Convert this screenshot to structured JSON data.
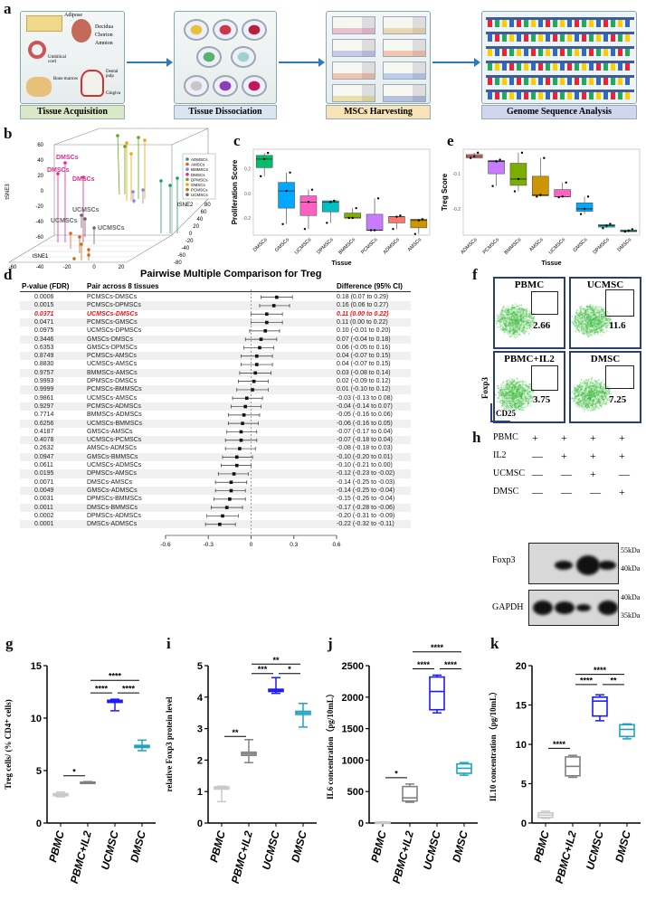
{
  "panel_labels": {
    "a": "a",
    "b": "b",
    "c": "c",
    "d": "d",
    "e": "e",
    "f": "f",
    "g": "g",
    "h": "h",
    "i": "i",
    "j": "j",
    "k": "k"
  },
  "panel_a": {
    "steps": [
      "Tissue Acquisition",
      "Tissue Dissociation",
      "MSCs Harvesting",
      "Genome Sequence Analysis"
    ],
    "tissues": [
      "Adipose",
      "Decidua",
      "Chorion",
      "Amnion",
      "Umbilical cord",
      "Bone marrow",
      "Dental pulp",
      "Gingiva"
    ],
    "accent": "#2b7bb9"
  },
  "chart_data": [
    {
      "id": "b",
      "type": "scatter",
      "title": "",
      "xlabel": "tSNE1",
      "ylabel": "tSNE2",
      "zlabel": "tSNE3",
      "x_ticks": [
        "-60",
        "-40",
        "-20",
        "0",
        "20"
      ],
      "y_ticks": [
        "-80",
        "-60",
        "-40",
        "-20",
        "0",
        "20",
        "40",
        "60",
        "80"
      ],
      "z_ticks": [
        "-60",
        "-40",
        "-20",
        "0",
        "20",
        "40",
        "60"
      ],
      "legend": [
        {
          "name": "ADMSCs",
          "color": "#1b9e77"
        },
        {
          "name": "AMSCs",
          "color": "#e7601c"
        },
        {
          "name": "BMMSCs",
          "color": "#8a86d0"
        },
        {
          "name": "DMSCs",
          "color": "#e7298a"
        },
        {
          "name": "DPMSCs",
          "color": "#66a61e"
        },
        {
          "name": "GMSCs",
          "color": "#e6ab02"
        },
        {
          "name": "PCMSCs",
          "color": "#b5771b"
        },
        {
          "name": "UCMSCs",
          "color": "#666666"
        }
      ],
      "legend_position": "top-right",
      "annotations": [
        "DMSCs",
        "DMSCs",
        "DMSCs",
        "UCMSCs",
        "UCMSCs",
        "UCMSCs"
      ]
    },
    {
      "id": "c",
      "type": "box",
      "ylabel": "Proliferation Score",
      "xlabel": "Tissue",
      "ylim": [
        -0.34,
        0.36
      ],
      "y_ticks": [
        0.2,
        0.0,
        -0.2
      ],
      "y_tick_labels": [
        "0.2",
        "0.0",
        "-0.2"
      ],
      "categories": [
        "DMSCs",
        "GMSCs",
        "UCMSCs",
        "DPMSCs",
        "BMMSCs",
        "PCMSCs",
        "ADMSCs",
        "AMSCs"
      ],
      "colors": [
        "#00be67",
        "#00a9ff",
        "#ff61c3",
        "#00bfc4",
        "#7cae00",
        "#c77cff",
        "#f8766d",
        "#cd9600"
      ],
      "boxes": [
        [
          0.14,
          0.21,
          0.28,
          0.31,
          0.33
        ],
        [
          -0.25,
          -0.12,
          0.02,
          0.09,
          0.17
        ],
        [
          -0.29,
          -0.18,
          -0.07,
          -0.02,
          0.03
        ],
        [
          -0.24,
          -0.15,
          -0.07,
          -0.06,
          -0.06
        ],
        [
          -0.2,
          -0.2,
          -0.2,
          -0.16,
          -0.12
        ],
        [
          -0.3,
          -0.3,
          -0.3,
          -0.17,
          -0.04
        ],
        [
          -0.29,
          -0.24,
          -0.19,
          -0.19,
          -0.18
        ],
        [
          -0.33,
          -0.28,
          -0.22,
          -0.21,
          -0.21
        ]
      ]
    },
    {
      "id": "e",
      "type": "box",
      "ylabel": "Treg Score",
      "xlabel": "Tissue",
      "ylim": [
        -0.275,
        -0.03
      ],
      "y_ticks": [
        -0.1,
        -0.2
      ],
      "y_tick_labels": [
        "-0.1",
        "-0.2"
      ],
      "categories": [
        "ADMSCs",
        "PCMSCs",
        "BMMSCs",
        "AMSCs",
        "UCMSCs",
        "GMSCs",
        "DPMSCs",
        "DMSCs"
      ],
      "colors": [
        "#f8766d",
        "#c77cff",
        "#7cae00",
        "#cd9600",
        "#ff61c3",
        "#00a9ff",
        "#00bfc4",
        "#00be67"
      ],
      "boxes": [
        [
          -0.055,
          -0.055,
          -0.05,
          -0.045,
          -0.04
        ],
        [
          -0.135,
          -0.1,
          -0.065,
          -0.062,
          -0.06
        ],
        [
          -0.15,
          -0.133,
          -0.115,
          -0.07,
          -0.04
        ],
        [
          -0.165,
          -0.163,
          -0.16,
          -0.107,
          -0.055
        ],
        [
          -0.167,
          -0.165,
          -0.165,
          -0.145,
          -0.125
        ],
        [
          -0.215,
          -0.207,
          -0.2,
          -0.183,
          -0.165
        ],
        [
          -0.255,
          -0.252,
          -0.248,
          -0.245,
          -0.243
        ],
        [
          -0.265,
          -0.265,
          -0.263,
          -0.26,
          -0.258
        ]
      ]
    },
    {
      "id": "d",
      "type": "forest",
      "title": "Pairwise Multiple Comparison for Treg",
      "headers": [
        "P-value (FDR)",
        "Pair across 8 tissues",
        "Difference (95% CI)"
      ],
      "xlim": [
        -0.6,
        0.6
      ],
      "x_ticks": [
        "-0.6",
        "-0.3",
        "0",
        "0.3",
        "0.6"
      ],
      "highlight_color": "#e8141b",
      "rows": [
        {
          "p": "0.0006",
          "pair": "PCMSCs-DMSCs",
          "est": 0.18,
          "lo": 0.07,
          "hi": 0.29,
          "text": "0.18 (0.07 to 0.29)"
        },
        {
          "p": "0.0015",
          "pair": "PCMSCs-DPMSCs",
          "est": 0.16,
          "lo": 0.06,
          "hi": 0.27,
          "text": "0.16 (0.06 to 0.27)"
        },
        {
          "p": "0.0371",
          "pair": "UCMSCs-DMSCs",
          "est": 0.11,
          "lo": 0.0,
          "hi": 0.22,
          "text": "0.11 (0.00 to 0.22)",
          "highlight": true
        },
        {
          "p": "0.0471",
          "pair": "PCMSCs-GMSCs",
          "est": 0.11,
          "lo": 0.0,
          "hi": 0.22,
          "text": "0.11 (0.00 to 0.22)"
        },
        {
          "p": "0.0975",
          "pair": "UCMSCs-DPMSCs",
          "est": 0.1,
          "lo": -0.01,
          "hi": 0.2,
          "text": "0.10 (-0.01 to 0.20)"
        },
        {
          "p": "0.3446",
          "pair": "GMSCs-DMSCs",
          "est": 0.07,
          "lo": -0.04,
          "hi": 0.18,
          "text": "0.07 (-0.04 to 0.18)"
        },
        {
          "p": "0.6353",
          "pair": "GMSCs-DPMSCs",
          "est": 0.06,
          "lo": -0.05,
          "hi": 0.16,
          "text": "0.06 (-0.05 to 0.16)"
        },
        {
          "p": "0.8749",
          "pair": "PCMSCs-AMSCs",
          "est": 0.04,
          "lo": -0.07,
          "hi": 0.15,
          "text": "0.04 (-0.07 to 0.15)"
        },
        {
          "p": "0.8830",
          "pair": "UCMSCs-AMSCs",
          "est": 0.04,
          "lo": -0.07,
          "hi": 0.15,
          "text": "0.04 (-0.07 to 0.15)"
        },
        {
          "p": "0.9757",
          "pair": "BMMSCs-AMSCs",
          "est": 0.03,
          "lo": -0.08,
          "hi": 0.14,
          "text": "0.03 (-0.08 to 0.14)"
        },
        {
          "p": "0.9993",
          "pair": "DPMSCs-DMSCs",
          "est": 0.02,
          "lo": -0.09,
          "hi": 0.12,
          "text": "0.02 (-0.09 to 0.12)"
        },
        {
          "p": "0.9999",
          "pair": "PCMSCs-BMMSCs",
          "est": 0.01,
          "lo": -0.1,
          "hi": 0.12,
          "text": "0.01 (-0.10 to 0.12)"
        },
        {
          "p": "0.9861",
          "pair": "UCMSCs-AMSCs",
          "est": -0.03,
          "lo": -0.13,
          "hi": 0.08,
          "text": "-0.03 (-0.13 to 0.08)"
        },
        {
          "p": "0.9297",
          "pair": "PCMSCs-ADMSCs",
          "est": -0.04,
          "lo": -0.14,
          "hi": 0.07,
          "text": "-0.04 (-0.14 to 0.07)"
        },
        {
          "p": "0.7714",
          "pair": "BMMSCs-ADMSCs",
          "est": -0.05,
          "lo": -0.16,
          "hi": 0.06,
          "text": "-0.05 (-0.16 to 0.06)"
        },
        {
          "p": "0.6256",
          "pair": "UCMSCs-BMMSCs",
          "est": -0.06,
          "lo": -0.16,
          "hi": 0.05,
          "text": "-0.06 (-0.16 to 0.05)"
        },
        {
          "p": "0.4187",
          "pair": "GMSCs-AMSCs",
          "est": -0.07,
          "lo": -0.17,
          "hi": 0.04,
          "text": "-0.07 (-0.17 to 0.04)"
        },
        {
          "p": "0.4078",
          "pair": "UCMSCs-PCMSCs",
          "est": -0.07,
          "lo": -0.18,
          "hi": 0.04,
          "text": "-0.07 (-0.18 to 0.04)"
        },
        {
          "p": "0.2632",
          "pair": "AMSCs-ADMSCs",
          "est": -0.08,
          "lo": -0.18,
          "hi": 0.03,
          "text": "-0.08 (-0.18 to 0.03)"
        },
        {
          "p": "0.0947",
          "pair": "GMSCs-BMMSCs",
          "est": -0.1,
          "lo": -0.2,
          "hi": 0.01,
          "text": "-0.10 (-0.20 to 0.01)"
        },
        {
          "p": "0.0611",
          "pair": "UCMSCs-ADMSCs",
          "est": -0.1,
          "lo": -0.21,
          "hi": 0.0,
          "text": "-0.10 (-0.21 to 0.00)"
        },
        {
          "p": "0.0195",
          "pair": "DPMSCs-AMSCs",
          "est": -0.12,
          "lo": -0.23,
          "hi": -0.02,
          "text": "-0.12 (-0.23 to -0.02)"
        },
        {
          "p": "0.0071",
          "pair": "DMSCs-AMSCs",
          "est": -0.14,
          "lo": -0.25,
          "hi": -0.03,
          "text": "-0.14 (-0.25 to -0.03)"
        },
        {
          "p": "0.0049",
          "pair": "GMSCs-ADMSCs",
          "est": -0.14,
          "lo": -0.25,
          "hi": -0.04,
          "text": "-0.14 (-0.25 to -0.04)"
        },
        {
          "p": "0.0031",
          "pair": "DPMSCs-BMMSCs",
          "est": -0.15,
          "lo": -0.26,
          "hi": -0.04,
          "text": "-0.15 (-0.26 to -0.04)"
        },
        {
          "p": "0.0011",
          "pair": "DMSCs-BMMSCs",
          "est": -0.17,
          "lo": -0.28,
          "hi": -0.06,
          "text": "-0.17 (-0.28 to -0.06)"
        },
        {
          "p": "0.0002",
          "pair": "DPMSCs-ADMSCs",
          "est": -0.2,
          "lo": -0.31,
          "hi": -0.09,
          "text": "-0.20 (-0.31 to -0.09)"
        },
        {
          "p": "0.0001",
          "pair": "DMSCs-ADMSCs",
          "est": -0.22,
          "lo": -0.32,
          "hi": -0.11,
          "text": "-0.22 (-0.32 to -0.11)"
        }
      ]
    },
    {
      "id": "g",
      "type": "box",
      "ylabel": "Treg cells/ (% CD4⁺ cells)",
      "ylim": [
        0,
        15
      ],
      "y_ticks": [
        0,
        5,
        10,
        15
      ],
      "y_tick_labels": [
        "0",
        "5",
        "10",
        "15"
      ],
      "categories": [
        "PBMC",
        "PBMC+IL2",
        "UCMSC",
        "DMSC"
      ],
      "colors": [
        "#c8c8c8",
        "#808080",
        "#1a1aff",
        "#1fa3c0"
      ],
      "boxes": [
        [
          2.5,
          2.6,
          2.7,
          2.8,
          2.95
        ],
        [
          3.8,
          3.82,
          3.85,
          3.9,
          3.95
        ],
        [
          10.7,
          11.5,
          11.6,
          11.7,
          11.8
        ],
        [
          6.9,
          7.2,
          7.3,
          7.4,
          7.9
        ]
      ],
      "brackets": [
        {
          "from": 0,
          "to": 1,
          "level": 4.5,
          "label": "*"
        },
        {
          "from": 1,
          "to": 2,
          "level": 12.4,
          "label": "****"
        },
        {
          "from": 2,
          "to": 3,
          "level": 12.4,
          "label": "****"
        },
        {
          "from": 1,
          "to": 3,
          "level": 13.6,
          "label": "****"
        }
      ]
    },
    {
      "id": "i",
      "type": "box",
      "ylabel": "relative Foxp3 protein level",
      "ylim": [
        0,
        5
      ],
      "y_ticks": [
        0,
        1,
        2,
        3,
        4,
        5
      ],
      "y_tick_labels": [
        "0",
        "1",
        "2",
        "3",
        "4",
        "5"
      ],
      "categories": [
        "PBMC",
        "PBMC+IL2",
        "UCMSC",
        "DMSC"
      ],
      "colors": [
        "#c8c8c8",
        "#808080",
        "#1a1aff",
        "#1fa3c0"
      ],
      "boxes": [
        [
          0.68,
          1.08,
          1.12,
          1.15,
          1.17
        ],
        [
          1.92,
          2.15,
          2.2,
          2.25,
          2.65
        ],
        [
          4.12,
          4.18,
          4.22,
          4.25,
          4.62
        ],
        [
          3.05,
          3.45,
          3.5,
          3.55,
          3.8
        ]
      ],
      "brackets": [
        {
          "from": 0,
          "to": 1,
          "level": 2.75,
          "label": "**"
        },
        {
          "from": 1,
          "to": 2,
          "level": 4.75,
          "label": "***"
        },
        {
          "from": 2,
          "to": 3,
          "level": 4.75,
          "label": "*"
        },
        {
          "from": 1,
          "to": 3,
          "level": 5.05,
          "label": "**"
        }
      ]
    },
    {
      "id": "j",
      "type": "box",
      "ylabel": "IL6 concentration（pg/10mL）",
      "ylim": [
        0,
        2500
      ],
      "y_ticks": [
        0,
        500,
        1000,
        1500,
        2000,
        2500
      ],
      "y_tick_labels": [
        "0",
        "500",
        "1000",
        "1500",
        "2000",
        "2500"
      ],
      "categories": [
        "PBMC",
        "PBMC+IL2",
        "UCMSC",
        "DMSC"
      ],
      "colors": [
        "#c8c8c8",
        "#808080",
        "#1a1aff",
        "#1fa3c0"
      ],
      "boxes": [
        [
          0,
          5,
          10,
          15,
          20
        ],
        [
          330,
          350,
          400,
          580,
          620
        ],
        [
          1750,
          1800,
          2090,
          2320,
          2350
        ],
        [
          760,
          790,
          870,
          940,
          960
        ]
      ],
      "brackets": [
        {
          "from": 0,
          "to": 1,
          "level": 720,
          "label": "*"
        },
        {
          "from": 1,
          "to": 2,
          "level": 2450,
          "label": "****"
        },
        {
          "from": 2,
          "to": 3,
          "level": 2450,
          "label": "****"
        },
        {
          "from": 1,
          "to": 3,
          "level": 2720,
          "label": "****"
        }
      ]
    },
    {
      "id": "k",
      "type": "box",
      "ylabel": "IL10 concentration（pg/10mL）",
      "ylim": [
        0,
        20
      ],
      "y_ticks": [
        0,
        5,
        10,
        15,
        20
      ],
      "y_tick_labels": [
        "0",
        "5",
        "10",
        "15",
        "20"
      ],
      "categories": [
        "PBMC",
        "PBMC+IL2",
        "UCMSC",
        "DMSC"
      ],
      "colors": [
        "#c8c8c8",
        "#808080",
        "#1a1aff",
        "#1fa3c0"
      ],
      "boxes": [
        [
          0.6,
          0.7,
          1.0,
          1.3,
          1.5
        ],
        [
          5.8,
          6.0,
          7.2,
          8.4,
          8.6
        ],
        [
          13.0,
          13.6,
          15.5,
          16.0,
          16.3
        ],
        [
          10.7,
          11.0,
          11.9,
          12.5,
          12.6
        ]
      ],
      "brackets": [
        {
          "from": 0,
          "to": 1,
          "level": 9.5,
          "label": "****"
        },
        {
          "from": 1,
          "to": 2,
          "level": 17.6,
          "label": "****"
        },
        {
          "from": 2,
          "to": 3,
          "level": 17.6,
          "label": "**"
        },
        {
          "from": 1,
          "to": 3,
          "level": 18.9,
          "label": "****"
        }
      ]
    }
  ],
  "panel_f": {
    "plots": [
      {
        "title": "PBMC",
        "value": "2.66"
      },
      {
        "title": "UCMSC",
        "value": "11.6"
      },
      {
        "title": "PBMC+IL2",
        "value": "3.75"
      },
      {
        "title": "DMSC",
        "value": "7.25"
      }
    ],
    "y_axis": "Foxp3",
    "x_axis": "CD25",
    "dot_color": "#22b322"
  },
  "panel_h": {
    "rows": [
      {
        "label": "PBMC",
        "marks": [
          "+",
          "+",
          "+",
          "+"
        ]
      },
      {
        "label": "IL2",
        "marks": [
          "—",
          "+",
          "+",
          "+"
        ]
      },
      {
        "label": "UCMSC",
        "marks": [
          "—",
          "—",
          "+",
          "—"
        ]
      },
      {
        "label": "DMSC",
        "marks": [
          "—",
          "—",
          "—",
          "+"
        ]
      }
    ],
    "blots": [
      {
        "label": "Foxp3",
        "markers": [
          "55kDa",
          "40kDa"
        ]
      },
      {
        "label": "GAPDH",
        "markers": [
          "40kDa",
          "35kDa"
        ]
      }
    ]
  }
}
